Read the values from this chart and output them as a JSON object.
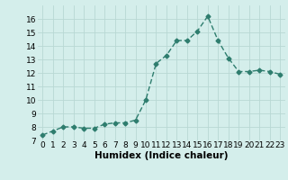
{
  "x": [
    0,
    1,
    2,
    3,
    4,
    5,
    6,
    7,
    8,
    9,
    10,
    11,
    12,
    13,
    14,
    15,
    16,
    17,
    18,
    19,
    20,
    21,
    22,
    23
  ],
  "y": [
    7.4,
    7.7,
    8.0,
    8.0,
    7.9,
    7.9,
    8.2,
    8.3,
    8.3,
    8.5,
    10.0,
    12.7,
    13.3,
    14.4,
    14.4,
    15.1,
    16.2,
    14.4,
    13.1,
    12.1,
    12.1,
    12.2,
    12.1,
    11.9
  ],
  "line_color": "#2e7d6e",
  "marker": "D",
  "marker_size": 2.5,
  "linewidth": 1.0,
  "xlabel": "Humidex (Indice chaleur)",
  "xlim": [
    -0.5,
    23.5
  ],
  "ylim": [
    7,
    17
  ],
  "yticks": [
    7,
    8,
    9,
    10,
    11,
    12,
    13,
    14,
    15,
    16
  ],
  "xticks": [
    0,
    1,
    2,
    3,
    4,
    5,
    6,
    7,
    8,
    9,
    10,
    11,
    12,
    13,
    14,
    15,
    16,
    17,
    18,
    19,
    20,
    21,
    22,
    23
  ],
  "background_color": "#d4eeeb",
  "grid_color": "#b8d8d4",
  "tick_fontsize": 6.5,
  "xlabel_fontsize": 7.5
}
